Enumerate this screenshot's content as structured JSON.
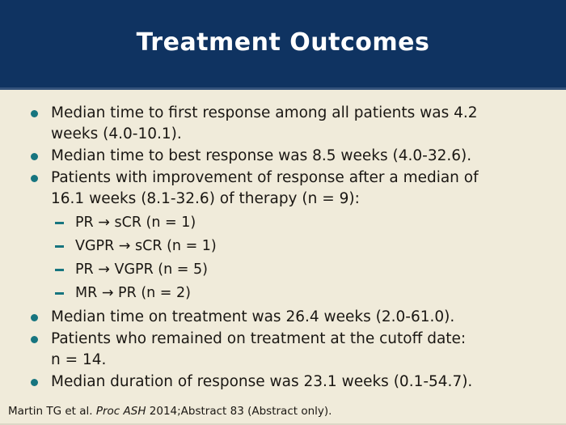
{
  "slide": {
    "title": "Treatment Outcomes",
    "colors": {
      "header_bg": "#0f3361",
      "header_edge": "#33527b",
      "body_bg": "#f0ebda",
      "bullet_teal": "#17757f",
      "text": "#1a1713",
      "title_text": "#ffffff"
    },
    "bullets": [
      {
        "text": "Median time to first response among all patients was 4.2\nweeks (4.0-10.1)."
      },
      {
        "text": "Median time to best response was 8.5 weeks (4.0-32.6)."
      },
      {
        "text": "Patients with improvement of response after a median of\n16.1 weeks (8.1-32.6) of therapy (n = 9):",
        "sub": [
          "PR → sCR (n = 1)",
          "VGPR → sCR (n = 1)",
          "PR → VGPR (n = 5)",
          "MR → PR (n = 2)"
        ]
      },
      {
        "text": "Median time on treatment was 26.4 weeks (2.0-61.0)."
      },
      {
        "text": "Patients who remained on treatment at the cutoff date:\nn = 14."
      },
      {
        "text": "Median duration of response was 23.1 weeks (0.1-54.7)."
      }
    ],
    "footer": {
      "prefix": "Martin TG et al. ",
      "journal": "Proc ASH",
      "suffix": " 2014;Abstract 83 (Abstract only)."
    }
  }
}
